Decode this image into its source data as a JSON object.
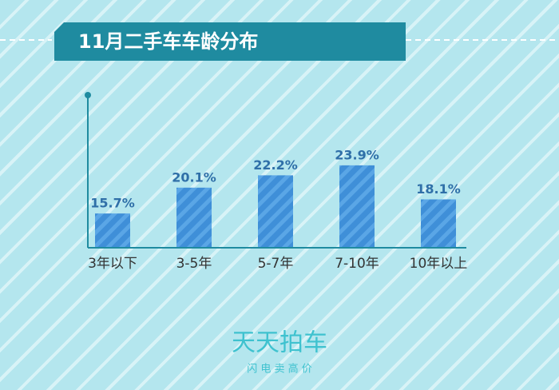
{
  "chart_data": {
    "type": "bar",
    "title": "11月二手车车龄分布",
    "categories": [
      "3年以下",
      "3-5年",
      "5-7年",
      "7-10年",
      "10年以上"
    ],
    "values": [
      15.7,
      20.1,
      22.2,
      23.9,
      18.1
    ],
    "value_labels": [
      "15.7%",
      "20.1%",
      "22.2%",
      "23.9%",
      "18.1%"
    ],
    "color": "#3f8fd8",
    "ylim": [
      10,
      36
    ]
  },
  "brand": {
    "name": "天天拍车",
    "slogan": "闪 电 卖 高 价"
  }
}
